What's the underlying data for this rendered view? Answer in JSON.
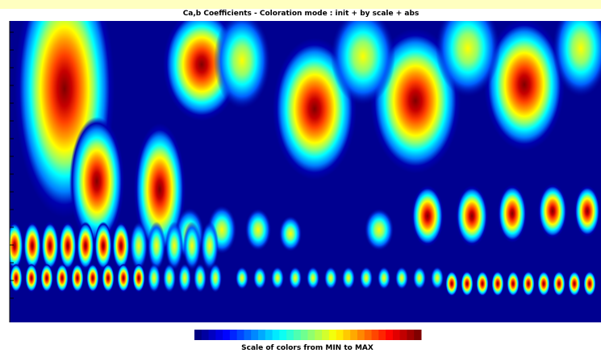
{
  "header": {
    "title": "Ca,b Coefficients  - Coloration mode : init + by scale + abs"
  },
  "colorbar": {
    "caption": "Scale of colors from MIN to MAX"
  }
}
